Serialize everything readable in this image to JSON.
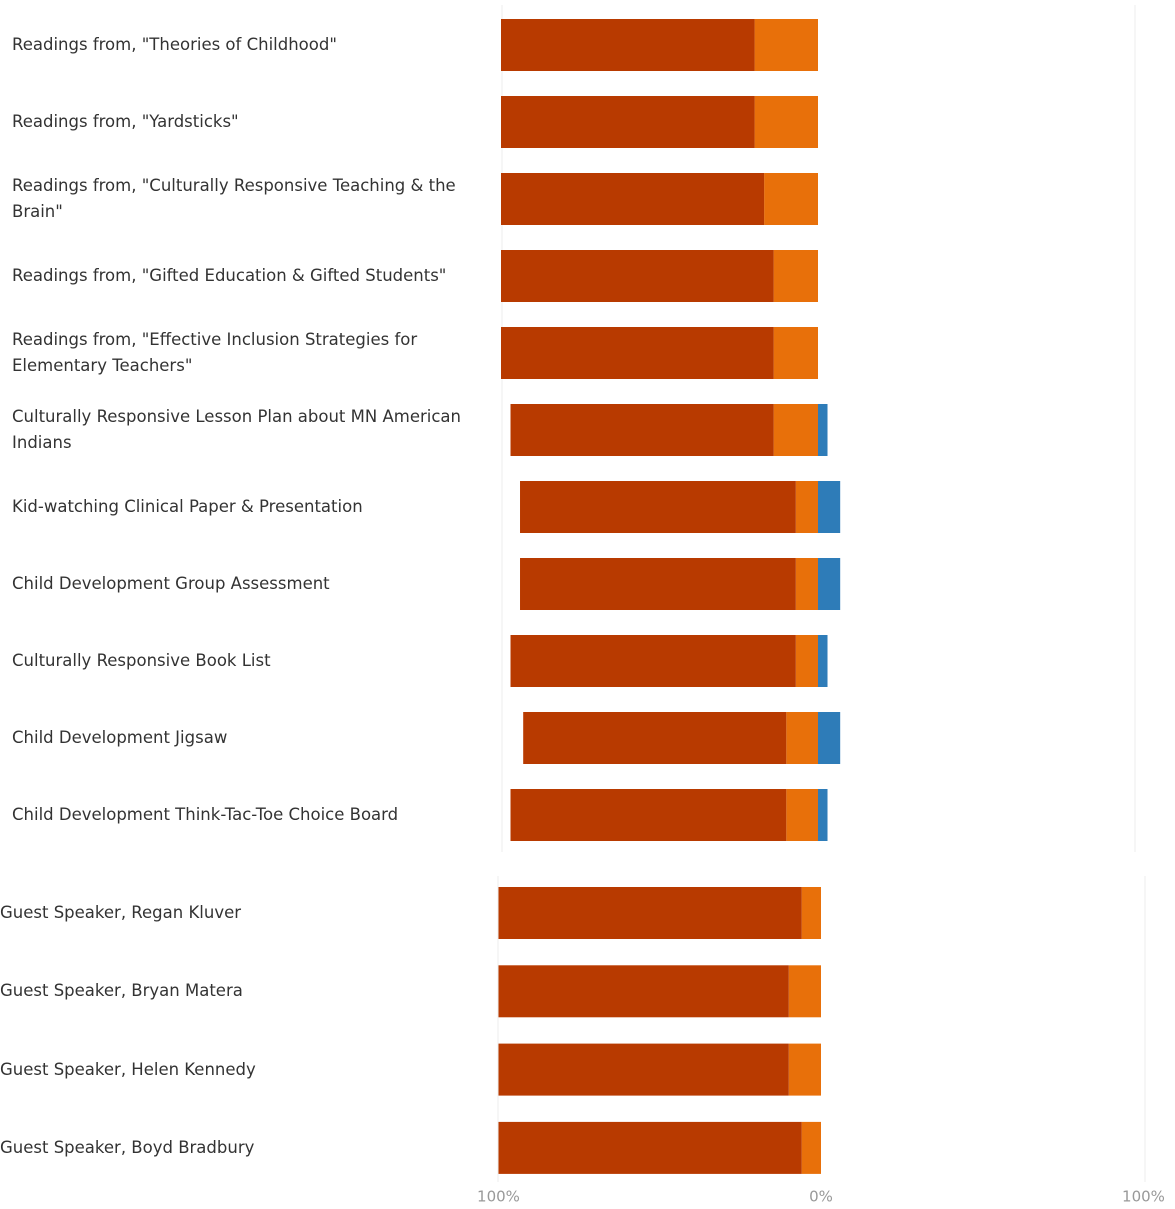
{
  "chart_data": [
    {
      "type": "diverging-bar",
      "categories": [
        "Readings from, \"Theories of Childhood\"",
        "Readings from, \"Yardsticks\"",
        "Readings from, \"Culturally Responsive Teaching & the Brain\"",
        "Readings from, \"Gifted Education & Gifted Students\"",
        "Readings from, \"Effective Inclusion Strategies for Elementary Teachers\"",
        "Culturally Responsive Lesson Plan about MN American Indians",
        "Kid-watching Clinical Paper & Presentation",
        "Child Development Group Assessment",
        "Culturally Responsive Book List",
        "Child Development Jigsaw",
        "Child Development Think-Tac-Toe Choice Board"
      ],
      "series": [
        {
          "color": "#e8700a",
          "values": [
            -20,
            -20,
            -17,
            -14,
            -14,
            -14,
            -7,
            -7,
            -7,
            -10,
            -10
          ]
        },
        {
          "color": "#b83a00",
          "values": [
            -80,
            -80,
            -83,
            -86,
            -86,
            -83,
            -87,
            -87,
            -90,
            -83,
            -87
          ]
        },
        {
          "color": "#2e7cb8",
          "values": [
            0,
            0,
            0,
            0,
            0,
            3,
            7,
            7,
            3,
            7,
            3
          ]
        }
      ],
      "xlim": [
        -100,
        100
      ]
    },
    {
      "type": "diverging-bar",
      "categories": [
        "Guest Speaker, Regan Kluver",
        "Guest Speaker, Bryan Matera",
        "Guest Speaker, Helen Kennedy",
        "Guest Speaker, Boyd Bradbury"
      ],
      "series": [
        {
          "color": "#e8700a",
          "values": [
            -6,
            -10,
            -10,
            -6
          ]
        },
        {
          "color": "#b83a00",
          "values": [
            -94,
            -90,
            -90,
            -94
          ]
        }
      ],
      "xlim": [
        -100,
        100
      ],
      "xticks": [
        {
          "value": -100,
          "label": "100%"
        },
        {
          "value": 0,
          "label": "0%"
        },
        {
          "value": 100,
          "label": "100%"
        }
      ]
    }
  ]
}
